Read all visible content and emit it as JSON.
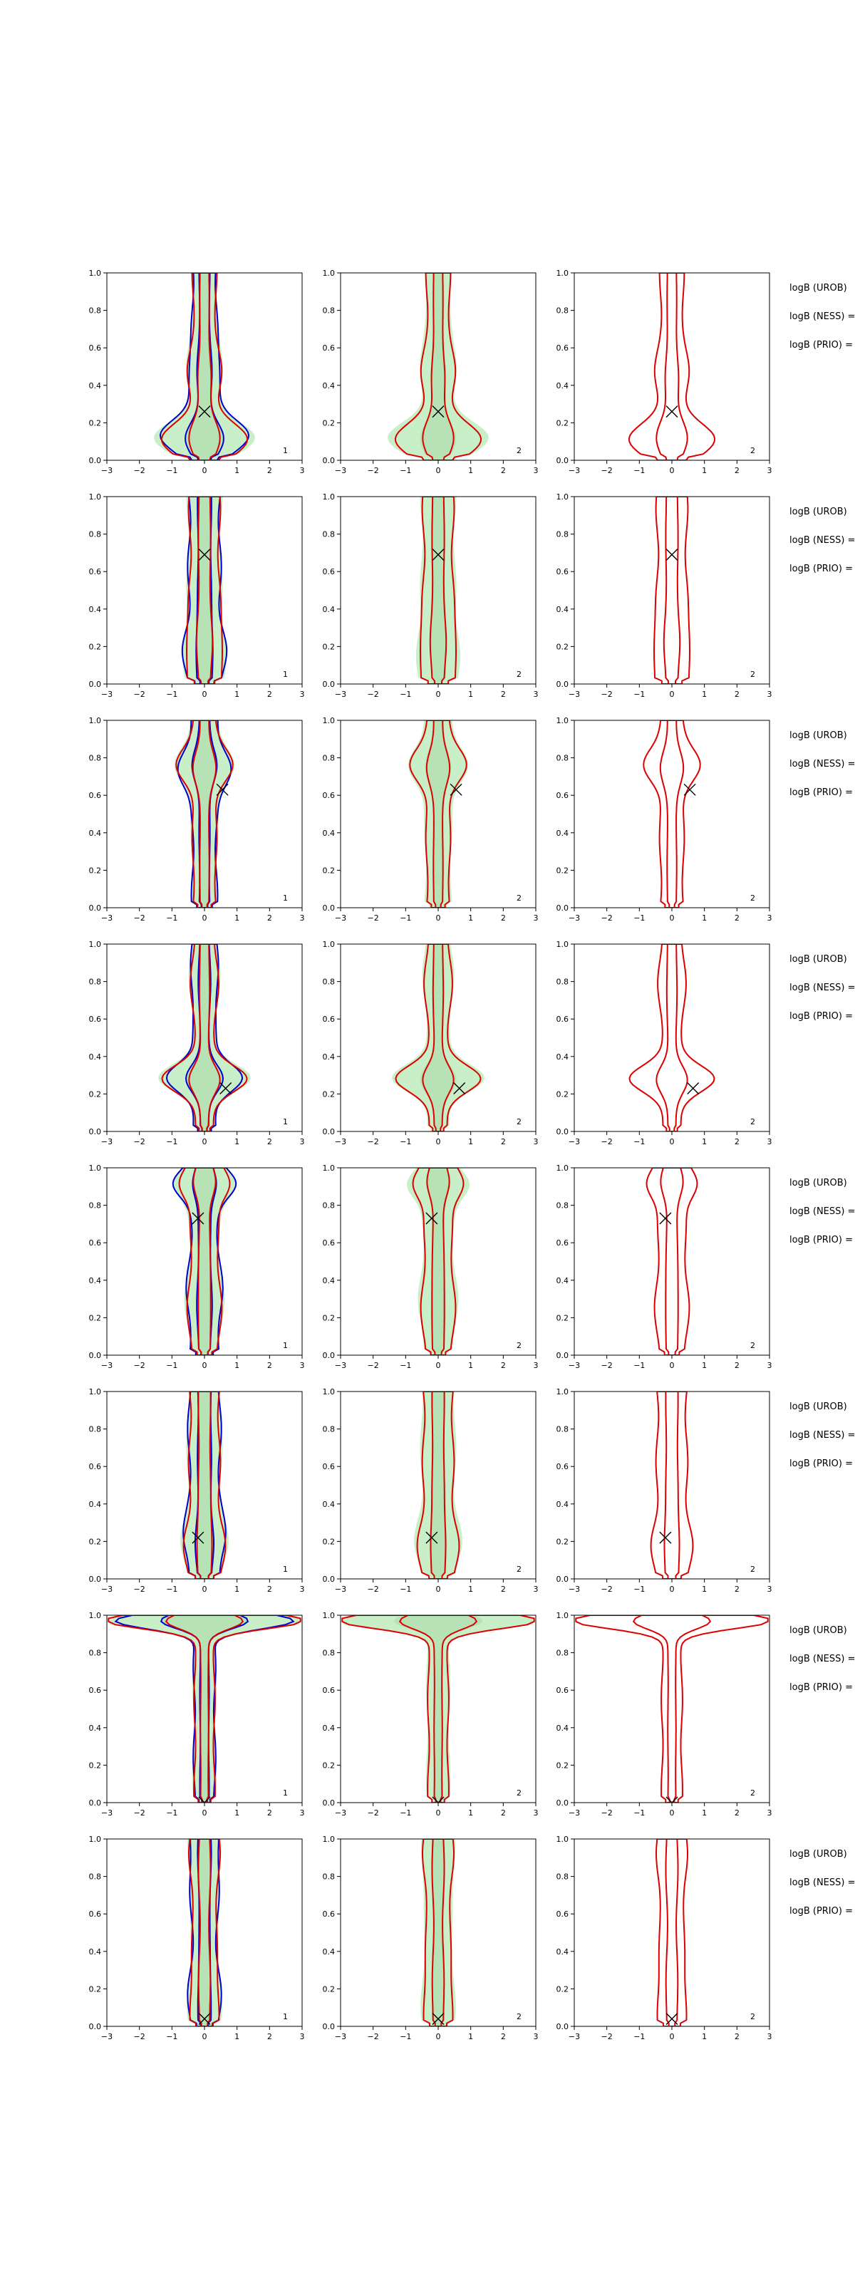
{
  "figure": {
    "background": "#ffffff"
  },
  "colors": {
    "contour_blue": "#0000cc",
    "contour_red": "#dd0000",
    "fill_green": "#c8efc8",
    "fill_green_core": "#aad8aa",
    "marker": "#000000"
  },
  "chart_data": {
    "type": "contour-grid",
    "xlim": [
      -3,
      3
    ],
    "ylim": [
      0,
      1
    ],
    "xticks": [
      "−3",
      "−2",
      "−1",
      "0",
      "1",
      "2",
      "3"
    ],
    "yticks": [
      "0.0",
      "0.2",
      "0.4",
      "0.6",
      "0.8",
      "1.0"
    ],
    "side_labels": [
      "logB (UROB)",
      "logB (NESS) =",
      "logB (PRIO) ="
    ],
    "rows": [
      {
        "marker": [
          0.0,
          0.26
        ],
        "panel_ids": [
          "1",
          "2",
          "2"
        ],
        "shape": "flare-bottom"
      },
      {
        "marker": [
          0.0,
          0.69
        ],
        "panel_ids": [
          "1",
          "2",
          "2"
        ],
        "shape": "column"
      },
      {
        "marker": [
          0.55,
          0.63
        ],
        "panel_ids": [
          "1",
          "2",
          "2"
        ],
        "shape": "bulge-top"
      },
      {
        "marker": [
          0.65,
          0.23
        ],
        "panel_ids": [
          "1",
          "2",
          "2"
        ],
        "shape": "bulge-bottom"
      },
      {
        "marker": [
          -0.2,
          0.73
        ],
        "panel_ids": [
          "1",
          "2",
          "2"
        ],
        "shape": "wide-top"
      },
      {
        "marker": [
          -0.2,
          0.22
        ],
        "panel_ids": [
          "1",
          "2",
          "2"
        ],
        "shape": "column"
      },
      {
        "marker": [
          0.0,
          0.0
        ],
        "panel_ids": [
          "1",
          "2",
          "2"
        ],
        "shape": "t-shape"
      },
      {
        "marker": [
          0.0,
          0.04
        ],
        "panel_ids": [
          "1",
          "2",
          "2"
        ],
        "shape": "narrow"
      }
    ]
  }
}
